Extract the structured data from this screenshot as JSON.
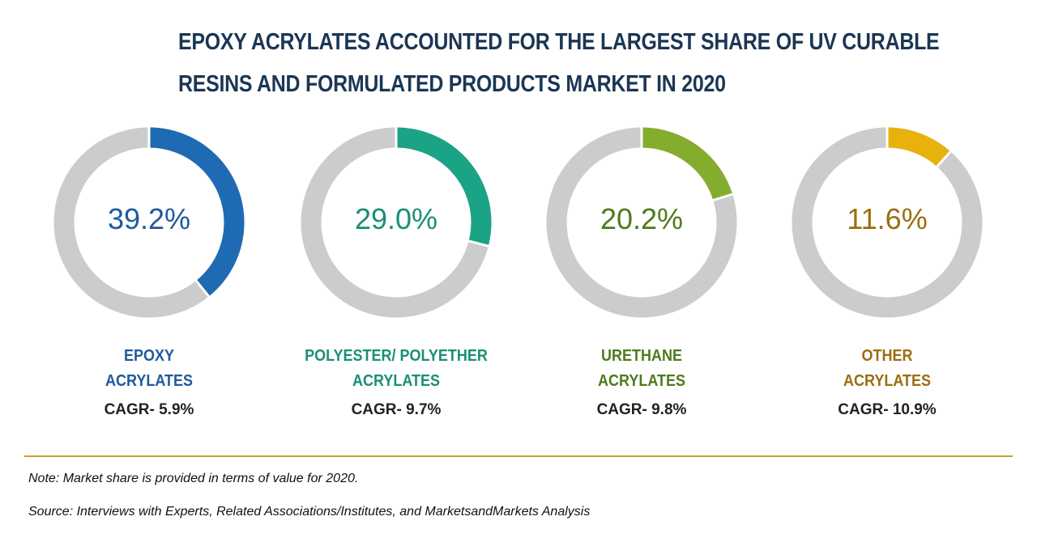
{
  "title": {
    "line1": "EPOXY ACRYLATES ACCOUNTED FOR THE LARGEST SHARE OF UV CURABLE",
    "line2": "RESINS AND FORMULATED PRODUCTS MARKET IN 2020"
  },
  "chart_data": {
    "type": "pie",
    "title": "EPOXY ACRYLATES ACCOUNTED FOR THE LARGEST SHARE OF UV CURABLE RESINS AND FORMULATED PRODUCTS MARKET IN 2020",
    "unit": "%",
    "track_color": "#cccccc",
    "segments": [
      {
        "name1": "EPOXY",
        "name2": "ACRYLATES",
        "value": 39.2,
        "value_label": "39.2%",
        "cagr": "CAGR- 5.9%",
        "color": "#1f6bb3",
        "text_color": "#1f5a9a"
      },
      {
        "name1": "POLYESTER/ POLYETHER",
        "name2": "ACRYLATES",
        "value": 29.0,
        "value_label": "29.0%",
        "cagr": "CAGR- 9.7%",
        "color": "#1aa384",
        "text_color": "#1a8f74"
      },
      {
        "name1": "URETHANE",
        "name2": "ACRYLATES",
        "value": 20.2,
        "value_label": "20.2%",
        "cagr": "CAGR- 9.8%",
        "color": "#84ad2e",
        "text_color": "#4f7a1e"
      },
      {
        "name1": "OTHER",
        "name2": "ACRYLATES",
        "value": 11.6,
        "value_label": "11.6%",
        "cagr": "CAGR- 10.9%",
        "color": "#e8b20c",
        "text_color": "#9a6e10"
      }
    ]
  },
  "footer": {
    "note": "Note: Market share is provided in terms of value for 2020.",
    "source": "Source: Interviews with Experts, Related Associations/Institutes, and MarketsandMarkets Analysis"
  }
}
